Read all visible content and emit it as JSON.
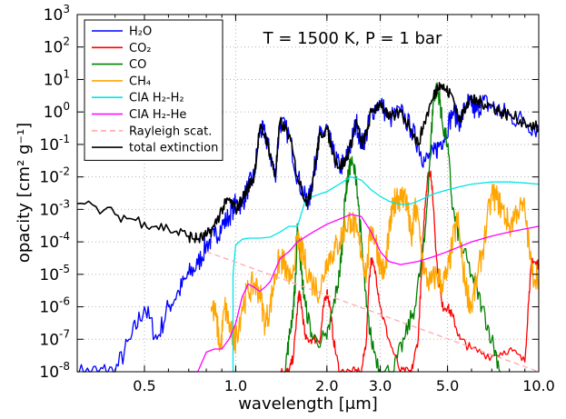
{
  "chart_data": {
    "type": "line",
    "title": "",
    "annotation": "T = 1500 K, P = 1 bar",
    "xlabel": "wavelength [μm]",
    "ylabel": "opacity [cm² g⁻¹]",
    "xscale": "log",
    "yscale": "log",
    "xlim": [
      0.3,
      10.0
    ],
    "ylim": [
      1e-08,
      1000
    ],
    "grid": true,
    "legend_position": "top-left",
    "xticks": [
      {
        "value": 0.5,
        "label": "0.5"
      },
      {
        "value": 1.0,
        "label": "1.0"
      },
      {
        "value": 2.0,
        "label": "2.0"
      },
      {
        "value": 3.0,
        "label": "3.0"
      },
      {
        "value": 5.0,
        "label": "5.0"
      },
      {
        "value": 10.0,
        "label": "10.0"
      }
    ],
    "yticks": [
      {
        "value": 1e-08,
        "label": "10",
        "exp": "-8"
      },
      {
        "value": 1e-07,
        "label": "10",
        "exp": "-7"
      },
      {
        "value": 1e-06,
        "label": "10",
        "exp": "-6"
      },
      {
        "value": 1e-05,
        "label": "10",
        "exp": "-5"
      },
      {
        "value": 0.0001,
        "label": "10",
        "exp": "-4"
      },
      {
        "value": 0.001,
        "label": "10",
        "exp": "-3"
      },
      {
        "value": 0.01,
        "label": "10",
        "exp": "-2"
      },
      {
        "value": 0.1,
        "label": "10",
        "exp": "-1"
      },
      {
        "value": 1,
        "label": "10",
        "exp": "0"
      },
      {
        "value": 10,
        "label": "10",
        "exp": "1"
      },
      {
        "value": 100,
        "label": "10",
        "exp": "2"
      },
      {
        "value": 1000,
        "label": "10",
        "exp": "3"
      }
    ],
    "series": [
      {
        "name": "H₂O",
        "color": "#0000ff",
        "dashed": false,
        "noise": 0.35,
        "x": [
          0.3,
          0.35,
          0.4,
          0.45,
          0.5,
          0.55,
          0.6,
          0.65,
          0.7,
          0.75,
          0.8,
          0.85,
          0.9,
          0.95,
          1.0,
          1.05,
          1.1,
          1.15,
          1.2,
          1.25,
          1.3,
          1.35,
          1.4,
          1.5,
          1.6,
          1.7,
          1.75,
          1.8,
          1.85,
          1.9,
          2.0,
          2.1,
          2.2,
          2.3,
          2.4,
          2.5,
          2.6,
          2.7,
          2.8,
          3.0,
          3.2,
          3.5,
          3.8,
          4.0,
          4.2,
          4.5,
          4.7,
          4.9,
          5.2,
          5.5,
          5.8,
          6.0,
          6.2,
          6.5,
          7.0,
          7.5,
          8.0,
          9.0,
          10.0
        ],
        "y": [
          8e-09,
          1e-08,
          1e-08,
          1e-07,
          1e-06,
          1e-07,
          1e-06,
          3e-06,
          1e-05,
          2e-05,
          8e-05,
          0.00015,
          0.0003,
          0.0006,
          0.0015,
          0.0015,
          0.005,
          0.01,
          0.3,
          0.2,
          0.05,
          0.01,
          0.5,
          0.2,
          0.01,
          0.002,
          0.002,
          0.01,
          0.05,
          0.2,
          0.3,
          0.05,
          0.02,
          0.03,
          0.1,
          0.5,
          0.1,
          0.2,
          1.0,
          2.0,
          0.6,
          1.0,
          0.3,
          0.1,
          0.03,
          0.05,
          0.1,
          0.2,
          1.0,
          0.5,
          2.0,
          1.5,
          1.0,
          2.0,
          1.5,
          1.0,
          0.8,
          0.5,
          0.3
        ]
      },
      {
        "name": "CO₂",
        "color": "#ff0000",
        "dashed": false,
        "noise": 0.15,
        "x": [
          1.4,
          1.45,
          1.5,
          1.55,
          1.6,
          1.62,
          1.65,
          1.7,
          1.8,
          1.9,
          1.95,
          2.0,
          2.05,
          2.1,
          2.2,
          2.4,
          2.6,
          2.7,
          2.75,
          2.8,
          2.9,
          3.0,
          3.2,
          3.5,
          3.8,
          4.0,
          4.1,
          4.2,
          4.3,
          4.4,
          4.5,
          4.6,
          4.8,
          5.0,
          5.2,
          5.5,
          6.0,
          7.0,
          8.0,
          9.0,
          9.3,
          9.5,
          9.8,
          10.0
        ],
        "y": [
          1e-08,
          1e-08,
          1e-08,
          3e-08,
          1e-06,
          3e-06,
          1e-06,
          1e-07,
          1e-07,
          1e-07,
          1e-06,
          3e-06,
          1e-06,
          1e-07,
          1e-08,
          1e-08,
          1e-08,
          1e-07,
          5e-06,
          3e-05,
          1e-05,
          1e-06,
          1e-07,
          1e-08,
          1e-08,
          1e-07,
          1e-05,
          0.001,
          0.01,
          0.015,
          0.001,
          3e-05,
          1e-06,
          1e-06,
          5e-07,
          1e-07,
          5e-08,
          3e-08,
          5e-08,
          2e-08,
          3e-06,
          3e-05,
          2e-05,
          2e-05
        ]
      },
      {
        "name": "CO",
        "color": "#008000",
        "dashed": false,
        "noise": 0.3,
        "x": [
          1.45,
          1.5,
          1.55,
          1.58,
          1.6,
          1.62,
          1.65,
          1.7,
          1.8,
          2.0,
          2.1,
          2.2,
          2.25,
          2.3,
          2.35,
          2.4,
          2.5,
          2.6,
          2.7,
          2.8,
          3.0,
          3.3,
          3.6,
          3.9,
          4.2,
          4.4,
          4.5,
          4.6,
          4.7,
          4.8,
          5.0,
          5.2,
          5.5,
          6.0,
          6.5,
          7.0,
          7.5
        ],
        "y": [
          1e-08,
          1e-07,
          1e-06,
          1e-05,
          0.0003,
          0.0001,
          1e-05,
          1e-06,
          1e-07,
          1e-07,
          1e-06,
          1e-05,
          0.0001,
          0.003,
          0.01,
          0.03,
          0.01,
          0.0001,
          1e-06,
          1e-07,
          1e-08,
          1e-08,
          1e-07,
          1e-06,
          0.0001,
          0.1,
          3.0,
          5.0,
          3.0,
          0.5,
          0.1,
          0.001,
          0.0001,
          1e-05,
          1e-06,
          1e-07,
          1e-08
        ]
      },
      {
        "name": "CH₄",
        "color": "#ffa500",
        "dashed": false,
        "noise": 0.45,
        "x": [
          0.83,
          0.86,
          0.89,
          0.92,
          0.95,
          0.98,
          1.0,
          1.05,
          1.1,
          1.15,
          1.2,
          1.25,
          1.3,
          1.35,
          1.4,
          1.45,
          1.5,
          1.6,
          1.65,
          1.7,
          1.8,
          1.9,
          2.0,
          2.1,
          2.2,
          2.3,
          2.4,
          2.5,
          2.6,
          2.7,
          2.8,
          2.9,
          3.0,
          3.1,
          3.2,
          3.3,
          3.4,
          3.5,
          3.6,
          3.7,
          3.8,
          3.9,
          4.0,
          4.2,
          4.4,
          4.6,
          4.8,
          5.0,
          5.2,
          5.4,
          5.6,
          5.8,
          6.0,
          6.3,
          6.6,
          7.0,
          7.3,
          7.6,
          8.0,
          8.5,
          9.0,
          9.5,
          10.0
        ],
        "y": [
          1e-06,
          5e-07,
          5e-08,
          1e-06,
          3e-07,
          1e-07,
          1e-07,
          1e-06,
          3e-06,
          5e-06,
          3e-06,
          3e-07,
          1e-06,
          1e-05,
          3e-05,
          2e-05,
          5e-06,
          0.0001,
          5e-05,
          2e-05,
          5e-06,
          3e-06,
          3e-05,
          5e-05,
          0.0001,
          0.0003,
          0.0005,
          0.0002,
          5e-05,
          1e-05,
          0.0003,
          0.0001,
          2e-05,
          1e-05,
          0.00015,
          0.001,
          0.003,
          0.002,
          0.003,
          0.001,
          0.0001,
          0.001,
          0.0005,
          1e-05,
          5e-06,
          1e-05,
          5e-06,
          1e-05,
          0.0001,
          0.0005,
          2e-05,
          3e-06,
          1e-06,
          1e-05,
          0.0001,
          0.003,
          0.002,
          0.001,
          0.0003,
          0.001,
          0.001,
          1e-05,
          1e-05
        ]
      },
      {
        "name": "CIA H₂-H₂",
        "color": "#00e5e5",
        "dashed": false,
        "noise": 0,
        "x": [
          0.98,
          0.98,
          1.0,
          1.05,
          1.1,
          1.2,
          1.3,
          1.4,
          1.5,
          1.6,
          1.7,
          1.8,
          1.9,
          2.0,
          2.2,
          2.4,
          2.6,
          2.8,
          3.0,
          3.2,
          3.4,
          3.6,
          3.8,
          4.0,
          4.5,
          5.0,
          5.5,
          6.0,
          7.0,
          8.0,
          9.0,
          10.0
        ],
        "y": [
          1e-08,
          1e-05,
          8e-05,
          0.00012,
          0.00013,
          0.00013,
          0.00014,
          0.0002,
          0.0003,
          0.0003,
          0.002,
          0.0025,
          0.003,
          0.0035,
          0.006,
          0.01,
          0.008,
          0.004,
          0.0025,
          0.0018,
          0.0015,
          0.0014,
          0.0015,
          0.0018,
          0.003,
          0.004,
          0.005,
          0.006,
          0.007,
          0.007,
          0.0065,
          0.006
        ]
      },
      {
        "name": "CIA H₂-He",
        "color": "#ff00ff",
        "dashed": false,
        "noise": 0,
        "x": [
          0.7,
          0.75,
          0.8,
          0.85,
          0.9,
          0.95,
          1.0,
          1.05,
          1.1,
          1.15,
          1.2,
          1.25,
          1.3,
          1.4,
          1.5,
          1.6,
          1.8,
          2.0,
          2.2,
          2.4,
          2.6,
          2.8,
          3.0,
          3.2,
          3.5,
          4.0,
          4.5,
          5.0,
          6.0,
          7.0,
          8.0,
          9.0,
          10.0
        ],
        "y": [
          1e-08,
          1e-08,
          4e-08,
          5e-08,
          5e-08,
          1e-07,
          3e-07,
          2e-06,
          5e-06,
          4e-06,
          3e-06,
          4e-06,
          6e-06,
          3e-05,
          5e-05,
          0.0001,
          0.0002,
          0.00035,
          0.0005,
          0.0007,
          0.0006,
          0.0002,
          5e-05,
          2.5e-05,
          2e-05,
          2.5e-05,
          3.5e-05,
          5e-05,
          0.0001,
          0.00015,
          0.0002,
          0.00025,
          0.0003
        ]
      },
      {
        "name": "Rayleigh scat.",
        "color": "#ffaaaa",
        "dashed": true,
        "noise": 0,
        "x": [
          0.8,
          10.0
        ],
        "y": [
          5e-05,
          3e-09
        ]
      },
      {
        "name": "total extinction",
        "color": "#000000",
        "dashed": false,
        "noise": 0.2,
        "x": [
          0.3,
          0.4,
          0.5,
          0.6,
          0.7,
          0.75,
          0.8,
          0.85,
          0.9,
          0.95,
          1.0,
          1.05,
          1.1,
          1.15,
          1.2,
          1.25,
          1.3,
          1.35,
          1.4,
          1.5,
          1.6,
          1.7,
          1.75,
          1.8,
          1.85,
          1.9,
          2.0,
          2.1,
          2.2,
          2.3,
          2.4,
          2.5,
          2.6,
          2.7,
          2.8,
          3.0,
          3.2,
          3.5,
          3.8,
          4.0,
          4.2,
          4.5,
          4.7,
          4.9,
          5.2,
          5.5,
          5.8,
          6.0,
          6.2,
          6.5,
          7.0,
          7.5,
          8.0,
          9.0,
          10.0
        ],
        "y": [
          0.0015,
          0.0007,
          0.0004,
          0.00025,
          0.00015,
          0.00012,
          0.00015,
          0.0003,
          0.001,
          0.002,
          0.001,
          0.002,
          0.005,
          0.01,
          0.3,
          0.2,
          0.05,
          0.01,
          0.5,
          0.2,
          0.01,
          0.002,
          0.002,
          0.01,
          0.05,
          0.2,
          0.3,
          0.05,
          0.02,
          0.03,
          0.1,
          0.5,
          0.1,
          0.2,
          1.0,
          2.0,
          0.6,
          1.0,
          0.3,
          0.1,
          0.5,
          3.0,
          8.0,
          5.0,
          3.0,
          0.5,
          2.0,
          2.5,
          2.0,
          2.0,
          1.5,
          1.0,
          0.8,
          0.5,
          0.3
        ]
      }
    ]
  }
}
